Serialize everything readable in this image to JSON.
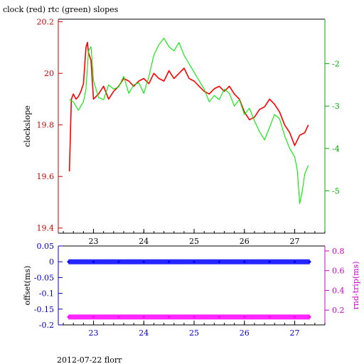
{
  "title": "clock (red) rtc (green) slopes",
  "footer": "2012-07-22 florr",
  "colors": {
    "clock": "#ff0000",
    "rtc": "#00ee00",
    "offset": "#0000ff",
    "rndtrip": "#ff00ff",
    "axis": "#000000"
  },
  "chart_data": [
    {
      "type": "line",
      "ylabel": "clockslope",
      "y2label": "",
      "xlim": [
        22.3,
        27.6
      ],
      "ylim": [
        19.38,
        20.21
      ],
      "y2lim": [
        -6.0,
        -0.95
      ],
      "x_ticks": [
        "23",
        "24",
        "25",
        "26",
        "27"
      ],
      "y_ticks": [
        "19.4",
        "19.6",
        "19.8",
        "20",
        "20.2"
      ],
      "y2_ticks": [
        "-5",
        "-4",
        "-3",
        "-2"
      ],
      "grid": false,
      "legend": "none",
      "series": [
        {
          "name": "clock",
          "color": "red",
          "axis": "left",
          "x": [
            22.52,
            22.56,
            22.6,
            22.65,
            22.7,
            22.75,
            22.8,
            22.85,
            22.88,
            22.9,
            22.95,
            23.0,
            23.1,
            23.2,
            23.3,
            23.4,
            23.5,
            23.6,
            23.7,
            23.8,
            23.9,
            24.0,
            24.1,
            24.2,
            24.3,
            24.4,
            24.5,
            24.6,
            24.7,
            24.8,
            24.9,
            25.0,
            25.1,
            25.2,
            25.3,
            25.4,
            25.5,
            25.6,
            25.7,
            25.8,
            25.9,
            26.0,
            26.1,
            26.2,
            26.3,
            26.4,
            26.5,
            26.6,
            26.7,
            26.8,
            26.9,
            27.0,
            27.1,
            27.2,
            27.27
          ],
          "y": [
            19.62,
            19.9,
            19.92,
            19.9,
            19.91,
            19.93,
            19.96,
            20.1,
            20.12,
            20.08,
            20.05,
            19.9,
            19.92,
            19.95,
            19.9,
            19.93,
            19.95,
            19.98,
            19.97,
            19.95,
            19.97,
            19.98,
            19.96,
            20.0,
            19.98,
            19.97,
            20.01,
            19.98,
            20.0,
            20.02,
            19.98,
            19.97,
            19.95,
            19.93,
            19.92,
            19.94,
            19.95,
            19.93,
            19.95,
            19.92,
            19.9,
            19.85,
            19.82,
            19.83,
            19.86,
            19.87,
            19.9,
            19.88,
            19.85,
            19.8,
            19.77,
            19.72,
            19.76,
            19.77,
            19.8
          ]
        },
        {
          "name": "rtc",
          "color": "green",
          "axis": "right",
          "x": [
            22.52,
            22.6,
            22.7,
            22.8,
            22.85,
            22.9,
            22.95,
            23.0,
            23.1,
            23.2,
            23.3,
            23.4,
            23.5,
            23.6,
            23.7,
            23.8,
            23.9,
            24.0,
            24.1,
            24.2,
            24.3,
            24.4,
            24.5,
            24.6,
            24.7,
            24.8,
            24.9,
            25.0,
            25.1,
            25.2,
            25.3,
            25.4,
            25.5,
            25.6,
            25.7,
            25.8,
            25.9,
            26.0,
            26.1,
            26.2,
            26.3,
            26.4,
            26.5,
            26.6,
            26.7,
            26.8,
            26.9,
            27.0,
            27.05,
            27.1,
            27.15,
            27.2,
            27.27
          ],
          "y": [
            -2.85,
            -2.9,
            -3.1,
            -2.9,
            -2.6,
            -1.7,
            -1.6,
            -2.4,
            -2.8,
            -2.85,
            -2.5,
            -2.6,
            -2.55,
            -2.3,
            -2.7,
            -2.5,
            -2.45,
            -2.7,
            -2.3,
            -1.8,
            -1.55,
            -1.4,
            -1.6,
            -1.7,
            -1.5,
            -1.8,
            -2.0,
            -2.2,
            -2.4,
            -2.6,
            -2.9,
            -2.75,
            -2.85,
            -2.6,
            -2.7,
            -3.0,
            -2.85,
            -3.2,
            -3.05,
            -3.35,
            -3.6,
            -3.8,
            -3.5,
            -3.2,
            -3.3,
            -3.7,
            -4.0,
            -4.2,
            -4.5,
            -5.3,
            -5.0,
            -4.6,
            -4.4
          ]
        }
      ]
    },
    {
      "type": "scatter",
      "ylabel": "offset(ms)",
      "y2label": "rnd-trip(ms)",
      "xlim": [
        22.3,
        27.6
      ],
      "ylim": [
        -0.2,
        0.05
      ],
      "y2lim": [
        0.05,
        0.85
      ],
      "x_ticks": [
        "23",
        "24",
        "25",
        "26",
        "27"
      ],
      "y_ticks": [
        "-0.2",
        "-0.15",
        "-0.1",
        "-0.05",
        "0",
        "0.05"
      ],
      "y2_ticks": [
        "0.2",
        "0.4",
        "0.6",
        "0.8"
      ],
      "grid": false,
      "legend": "none",
      "series": [
        {
          "name": "offset",
          "color": "blue",
          "axis": "left",
          "x": [
            22.5,
            23.0,
            23.5,
            24.0,
            24.5,
            25.0,
            25.5,
            26.0,
            26.5,
            27.0,
            27.3
          ],
          "y": [
            0.0,
            0.0,
            0.0,
            0.0,
            0.0,
            0.0,
            0.0,
            0.0,
            0.0,
            0.0,
            0.0
          ]
        },
        {
          "name": "rnd-trip",
          "color": "magenta",
          "axis": "right",
          "x": [
            22.5,
            23.0,
            23.5,
            24.0,
            24.5,
            25.0,
            25.5,
            26.0,
            26.5,
            27.0,
            27.3
          ],
          "y": [
            0.13,
            0.13,
            0.13,
            0.13,
            0.13,
            0.13,
            0.13,
            0.13,
            0.13,
            0.13,
            0.13
          ]
        }
      ]
    }
  ]
}
